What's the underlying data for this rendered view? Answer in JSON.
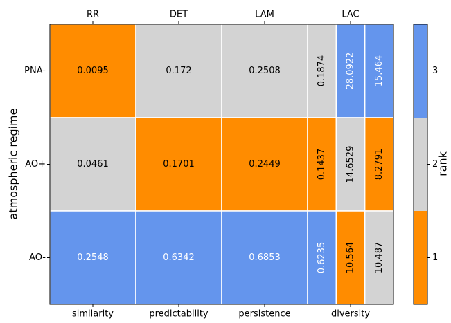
{
  "chart_data": {
    "type": "heatmap",
    "ylabel": "atmospheric regime",
    "rows": [
      "PNA-",
      "AO+",
      "AO-"
    ],
    "columns": [
      {
        "top": "RR",
        "bottom": "similarity"
      },
      {
        "top": "DET",
        "bottom": "predictability"
      },
      {
        "top": "LAM",
        "bottom": "persistence"
      },
      {
        "top": "LAC",
        "bottom": "diversity"
      }
    ],
    "values": [
      [
        0.0095,
        0.172,
        0.2508,
        [
          0.1874,
          28.0922,
          15.464
        ]
      ],
      [
        0.0461,
        0.1701,
        0.2449,
        [
          0.1437,
          14.6529,
          8.2791
        ]
      ],
      [
        0.2548,
        0.6342,
        0.6853,
        [
          0.6235,
          10.564,
          10.487
        ]
      ]
    ],
    "ranks": [
      [
        1,
        2,
        2,
        [
          2,
          3,
          3
        ]
      ],
      [
        2,
        1,
        1,
        [
          1,
          2,
          1
        ]
      ],
      [
        3,
        3,
        3,
        [
          3,
          1,
          2
        ]
      ]
    ],
    "colorbar": {
      "label": "rank",
      "lim": [
        0.5,
        3.5
      ],
      "ticks": [
        1,
        2,
        3
      ],
      "colors": [
        "#ff8c00",
        "#d3d3d3",
        "#6495ed"
      ]
    }
  }
}
